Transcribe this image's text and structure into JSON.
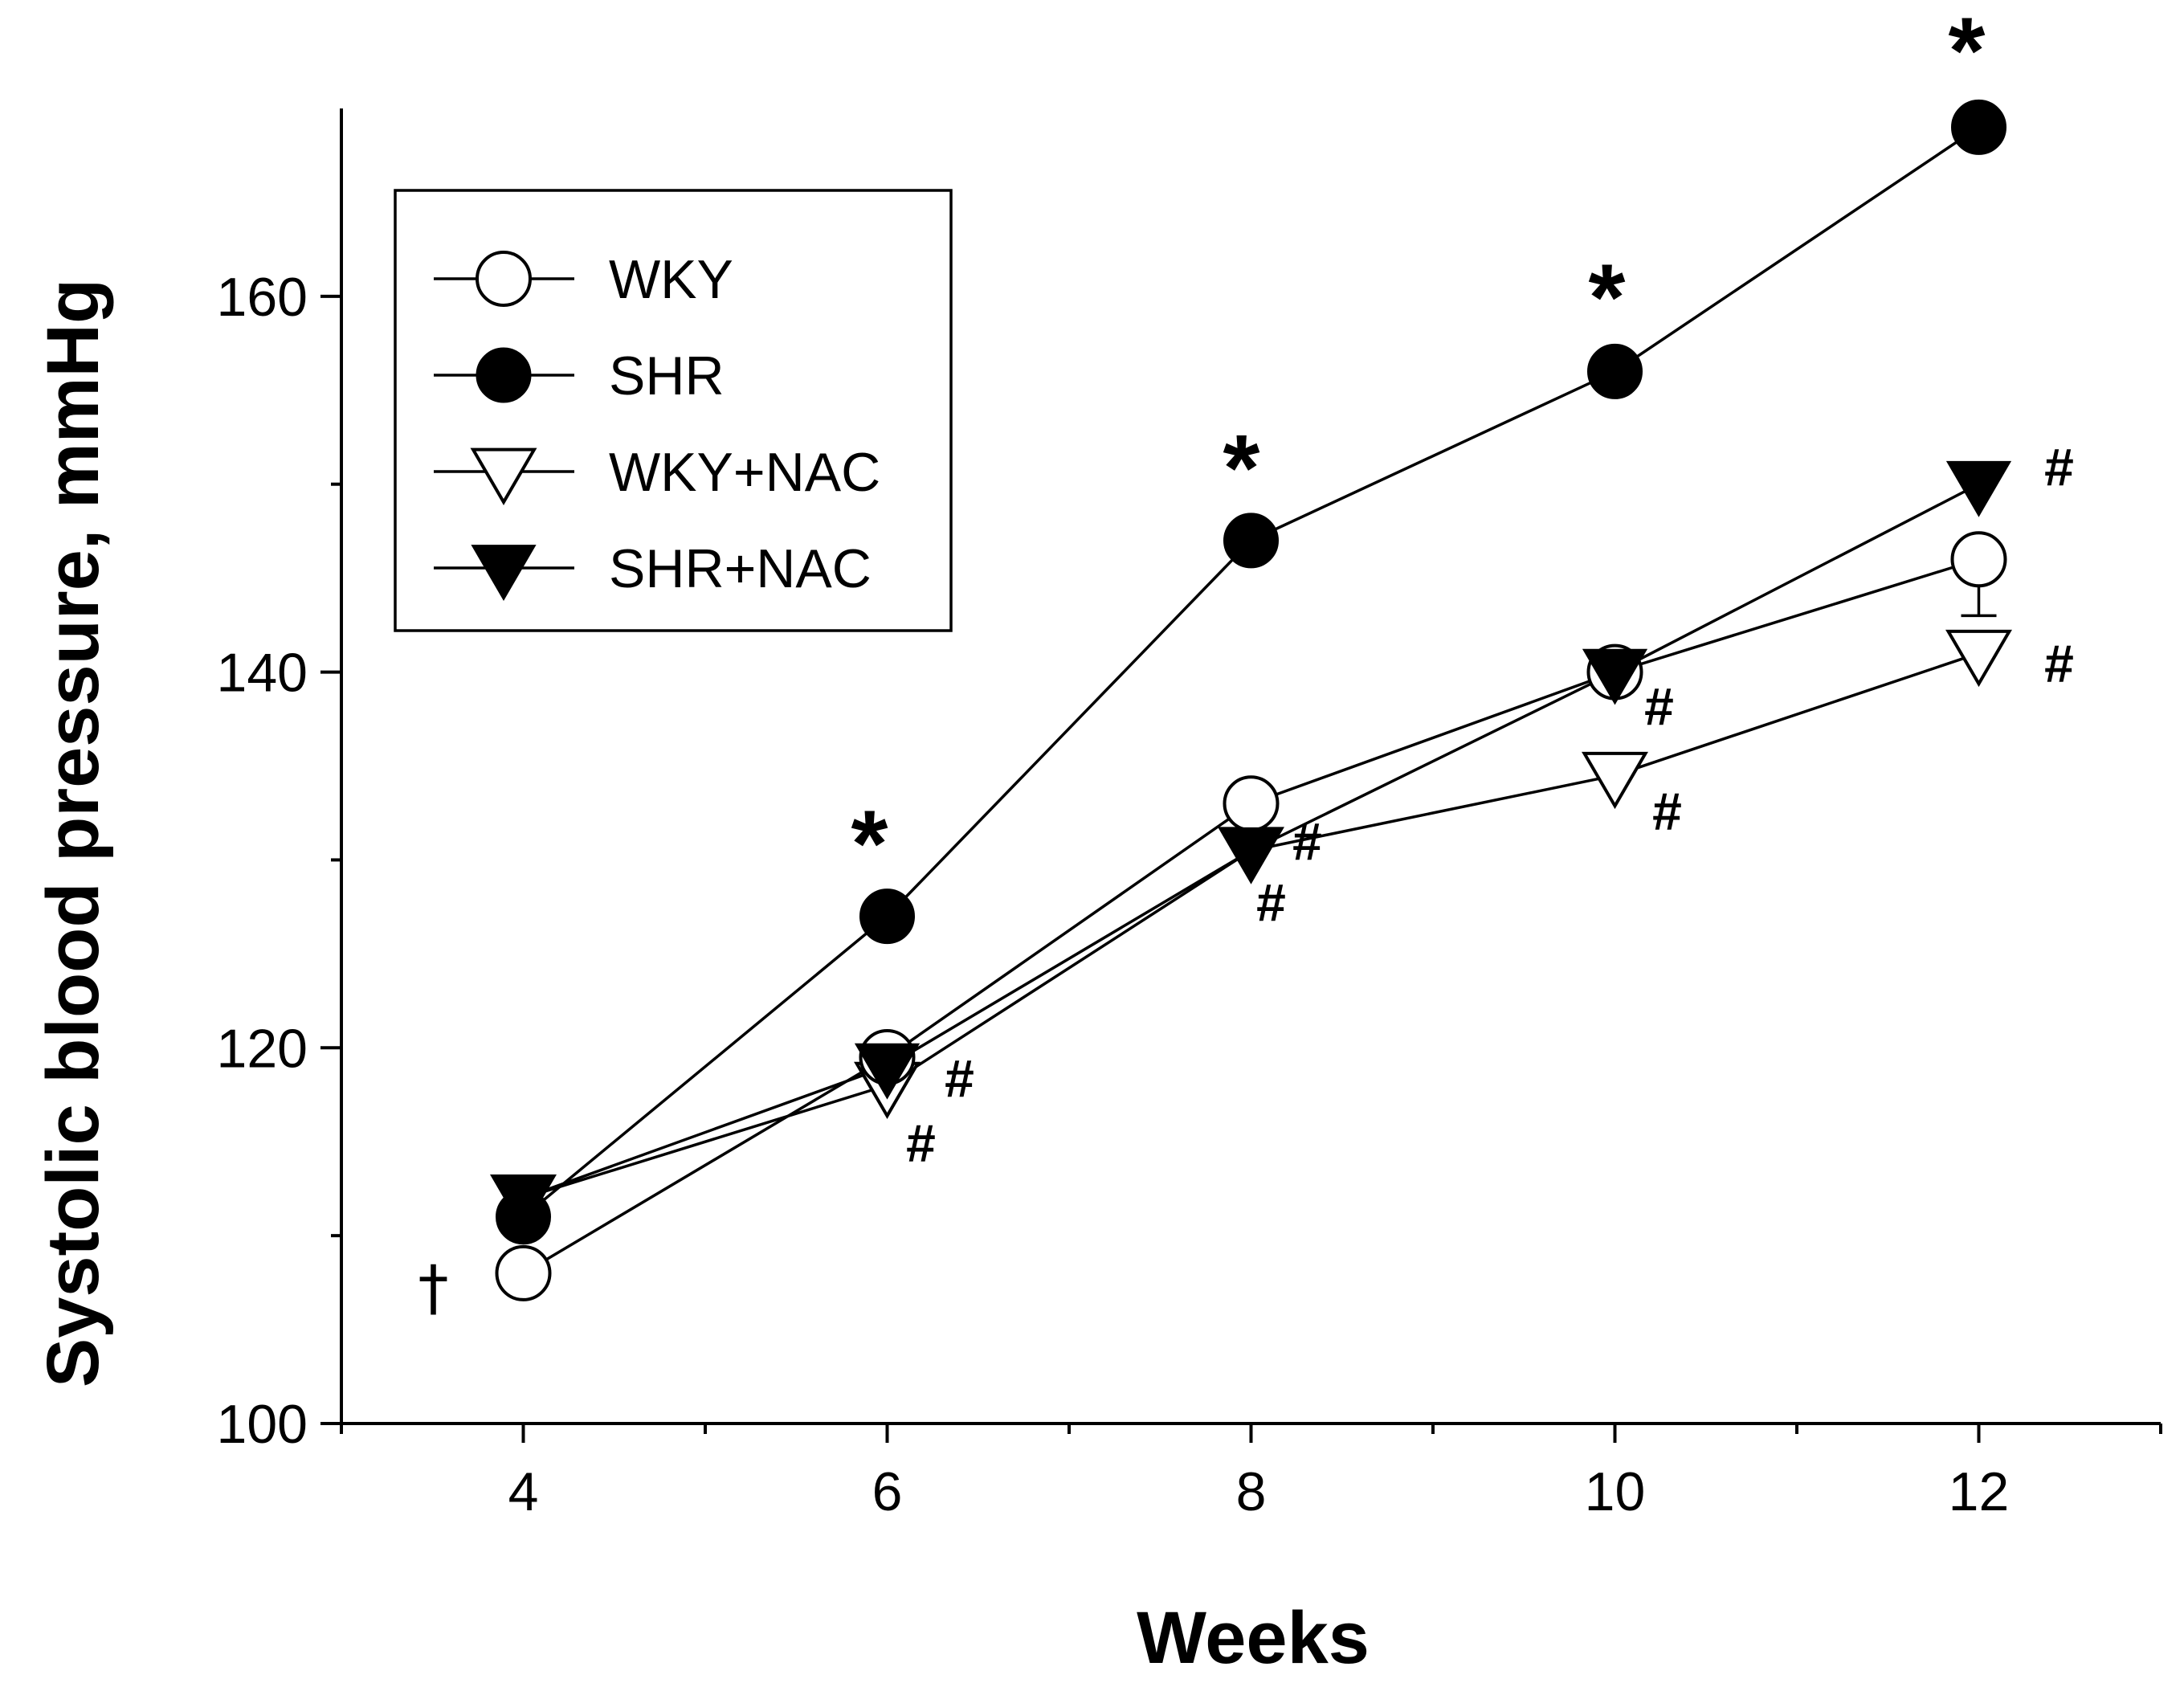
{
  "chart_data": {
    "type": "line",
    "title": "",
    "xlabel": "Weeks",
    "ylabel": "Systolic blood pressure, mmHg",
    "x": [
      4,
      6,
      8,
      10,
      12
    ],
    "xlim": [
      3,
      13
    ],
    "ylim": [
      100,
      170
    ],
    "xticks": [
      "4",
      "6",
      "8",
      "10",
      "12"
    ],
    "yticks": [
      "100",
      "120",
      "140",
      "160"
    ],
    "grid": false,
    "legend_position": "top-left",
    "series": [
      {
        "name": "WKY",
        "marker": "circle-open",
        "values": [
          108,
          119.5,
          133,
          140,
          146
        ],
        "errors": [
          0,
          0,
          0,
          0,
          3
        ]
      },
      {
        "name": "SHR",
        "marker": "circle-filled",
        "values": [
          111,
          127,
          147,
          156,
          169
        ],
        "errors": [
          0,
          0,
          0,
          0,
          0
        ]
      },
      {
        "name": "WKY+NAC",
        "marker": "triangle-down-open",
        "values": [
          112,
          118,
          130.5,
          134.5,
          141
        ],
        "errors": [
          0,
          0,
          0,
          0,
          0
        ]
      },
      {
        "name": "SHR+NAC",
        "marker": "triangle-down-filled",
        "values": [
          112,
          119,
          130.5,
          140,
          150
        ],
        "errors": [
          0,
          0,
          0,
          0,
          0
        ]
      }
    ],
    "annotations": [
      {
        "text": "*",
        "x": 6,
        "y": 127
      },
      {
        "text": "*",
        "x": 8,
        "y": 147
      },
      {
        "text": "*",
        "x": 10,
        "y": 156
      },
      {
        "text": "*",
        "x": 12,
        "y": 169
      },
      {
        "text": "#",
        "x": 6,
        "y": 119
      },
      {
        "text": "#",
        "x": 6,
        "y": 118
      },
      {
        "text": "#",
        "x": 8,
        "y": 130.5
      },
      {
        "text": "#",
        "x": 8,
        "y": 130.5
      },
      {
        "text": "#",
        "x": 10,
        "y": 140
      },
      {
        "text": "#",
        "x": 10,
        "y": 134.5
      },
      {
        "text": "#",
        "x": 12,
        "y": 150
      },
      {
        "text": "#",
        "x": 12,
        "y": 141
      },
      {
        "text": "†",
        "x": 4,
        "y": 108
      }
    ]
  }
}
